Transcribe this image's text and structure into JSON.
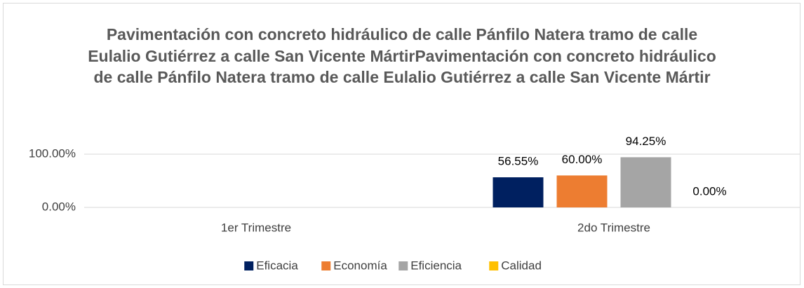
{
  "chart_data": {
    "type": "bar",
    "title": "Pavimentación con concreto hidráulico de calle Pánfilo Natera tramo de calle Eulalio Gutiérrez a calle San Vicente MártirPavimentación con concreto hidráulico de calle Pánfilo Natera tramo de calle Eulalio Gutiérrez a calle San Vicente Mártir",
    "categories": [
      "1er Trimestre",
      "2do Trimestre"
    ],
    "series": [
      {
        "name": "Eficacia",
        "color": "#002060",
        "values": [
          null,
          56.55
        ],
        "value_labels": [
          null,
          "56.55%"
        ]
      },
      {
        "name": "Economía",
        "color": "#ED7D31",
        "values": [
          null,
          60
        ],
        "value_labels": [
          null,
          "60.00%"
        ]
      },
      {
        "name": "Eficiencia",
        "color": "#A5A5A5",
        "values": [
          null,
          94.25
        ],
        "value_labels": [
          null,
          "94.25%"
        ]
      },
      {
        "name": "Calidad",
        "color": "#FFC000",
        "values": [
          null,
          0
        ],
        "value_labels": [
          null,
          "0.00%"
        ]
      }
    ],
    "ylim": [
      0,
      100
    ],
    "yticks": [
      {
        "value": 0,
        "label": "0.00%"
      },
      {
        "value": 100,
        "label": "100.00%"
      }
    ],
    "grid": true,
    "legend": "bottom"
  }
}
